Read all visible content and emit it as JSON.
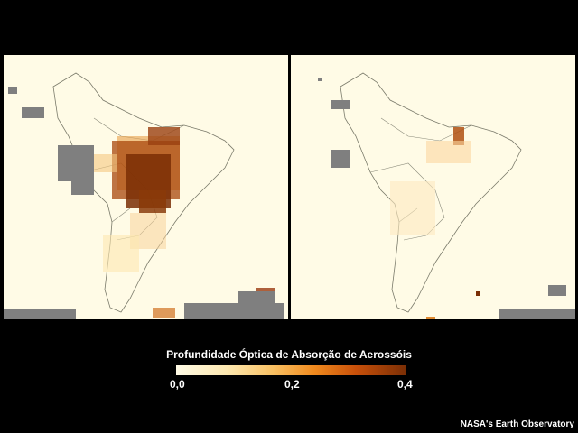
{
  "legend": {
    "title": "Profundidade Óptica de Absorção de Aerossóis",
    "ticks": [
      "0,0",
      "0,2",
      "0,4"
    ],
    "color_low": "#fffbe6",
    "color_high": "#7a2e05",
    "no_data_color": "#7f7f7f"
  },
  "credit": "NASA's Earth Observatory",
  "maps": [
    {
      "id": "left",
      "description_icon": "south-america-map",
      "dominant_level": "high"
    },
    {
      "id": "right",
      "description_icon": "south-america-map",
      "dominant_level": "low"
    }
  ]
}
